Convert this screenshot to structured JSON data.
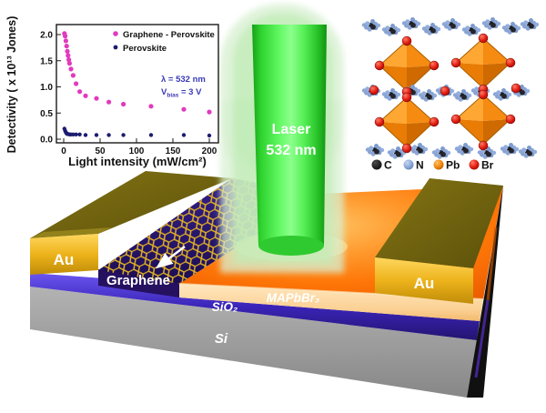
{
  "chart_data": {
    "type": "scatter",
    "title": "",
    "xlabel": "Light intensity (mW/cm²)",
    "ylabel": "Detectivity ( x 10¹³ Jones)",
    "xlim": [
      -10,
      212
    ],
    "ylim": [
      0,
      2.15
    ],
    "xticks": [
      0,
      50,
      100,
      150,
      200
    ],
    "yticks": [
      "0.0",
      "0.5",
      "1.0",
      "1.5",
      "2.0"
    ],
    "grid": false,
    "legend_position": "top-inside",
    "series": [
      {
        "name": "Graphene - Perovskite",
        "color": "#e23abd",
        "x": [
          1,
          2,
          3,
          4,
          5,
          6,
          7,
          8,
          10,
          13,
          17,
          22,
          30,
          45,
          62,
          82,
          120,
          165,
          200
        ],
        "y": [
          2.02,
          1.97,
          1.88,
          1.78,
          1.68,
          1.6,
          1.52,
          1.45,
          1.34,
          1.22,
          1.06,
          0.91,
          0.83,
          0.78,
          0.71,
          0.67,
          0.63,
          0.57,
          0.52
        ]
      },
      {
        "name": "Perovskite",
        "color": "#1c1c70",
        "x": [
          1,
          2,
          3,
          4,
          5,
          6,
          8,
          10,
          13,
          17,
          22,
          30,
          45,
          62,
          82,
          120,
          165,
          200
        ],
        "y": [
          0.2,
          0.16,
          0.13,
          0.11,
          0.1,
          0.1,
          0.09,
          0.09,
          0.09,
          0.09,
          0.09,
          0.08,
          0.08,
          0.08,
          0.08,
          0.08,
          0.08,
          0.07
        ]
      }
    ],
    "annotation": {
      "line1": "λ = 532 nm",
      "v_pre": "V",
      "v_sub": "bias",
      "v_post": " = 3 V",
      "color": "#3a3ab8"
    }
  },
  "laser": {
    "line1": "Laser",
    "line2": "532 nm",
    "beam_color": "#3ce23c"
  },
  "device": {
    "electrode_left": "Au",
    "electrode_right": "Au",
    "graphene": "Graphene",
    "perovskite": "MAPbBr₃",
    "oxide": "SiO₂",
    "substrate": "Si",
    "colors": {
      "gold": "#e8b61e",
      "gold_top": "#6e5f0e",
      "perovskite_top": "#fe7607",
      "perovskite_front": "#fbd092",
      "oxide": "#3a24b8",
      "substrate": "#9a9a9a",
      "graphene_bg": "#2c1773",
      "lattice": "#e0b122"
    }
  },
  "crystal_legend": {
    "items": [
      {
        "label": "C",
        "color": "#1a1a1a"
      },
      {
        "label": "N",
        "color": "#8ba6d6"
      },
      {
        "label": "Pb",
        "color": "#f28a12"
      },
      {
        "label": "Br",
        "color": "#cc1414"
      }
    ]
  }
}
